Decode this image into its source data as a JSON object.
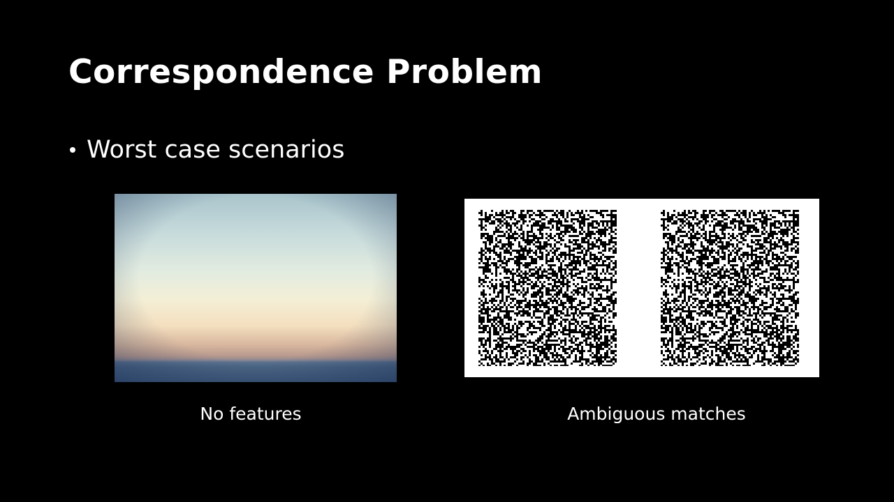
{
  "slide": {
    "title": "Correspondence Problem",
    "bullets": [
      {
        "text": "Worst case scenarios"
      }
    ],
    "figures": [
      {
        "caption": "No features"
      },
      {
        "caption": "Ambiguous matches"
      }
    ],
    "colors": {
      "background": "#000000",
      "text": "#ffffff"
    }
  }
}
